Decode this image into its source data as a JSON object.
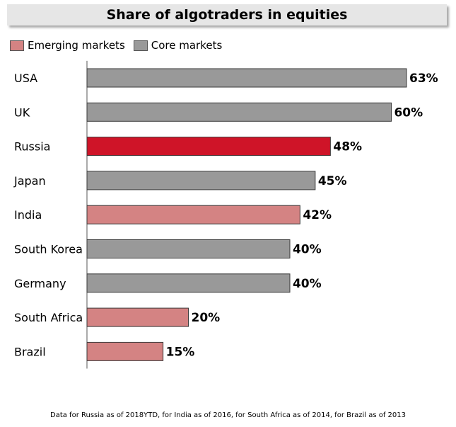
{
  "chart_data": {
    "type": "bar",
    "orientation": "horizontal",
    "title": "Share of algotraders in equities",
    "categories": [
      "USA",
      "UK",
      "Russia",
      "Japan",
      "India",
      "South Korea",
      "Germany",
      "South Africa",
      "Brazil"
    ],
    "values": [
      63,
      60,
      48,
      45,
      42,
      40,
      40,
      20,
      15
    ],
    "value_labels": [
      "63%",
      "60%",
      "48%",
      "45%",
      "42%",
      "40%",
      "40%",
      "20%",
      "15%"
    ],
    "groups": [
      "core",
      "core",
      "highlight",
      "core",
      "emerging",
      "core",
      "core",
      "emerging",
      "emerging"
    ],
    "legend": [
      {
        "key": "emerging",
        "label": "Emerging markets",
        "color": "#d48383"
      },
      {
        "key": "core",
        "label": "Core markets",
        "color": "#999999"
      }
    ],
    "legend_position": "top-left",
    "xlim": [
      0,
      63
    ],
    "grid": false,
    "colors": {
      "core": "#999999",
      "emerging": "#d48383",
      "highlight": "#cf1428",
      "bar_border": "#3a3a3a"
    },
    "footnote": "Data for Russia as of 2018YTD, for India as of 2016, for South Africa as of 2014, for Brazil as of 2013"
  }
}
